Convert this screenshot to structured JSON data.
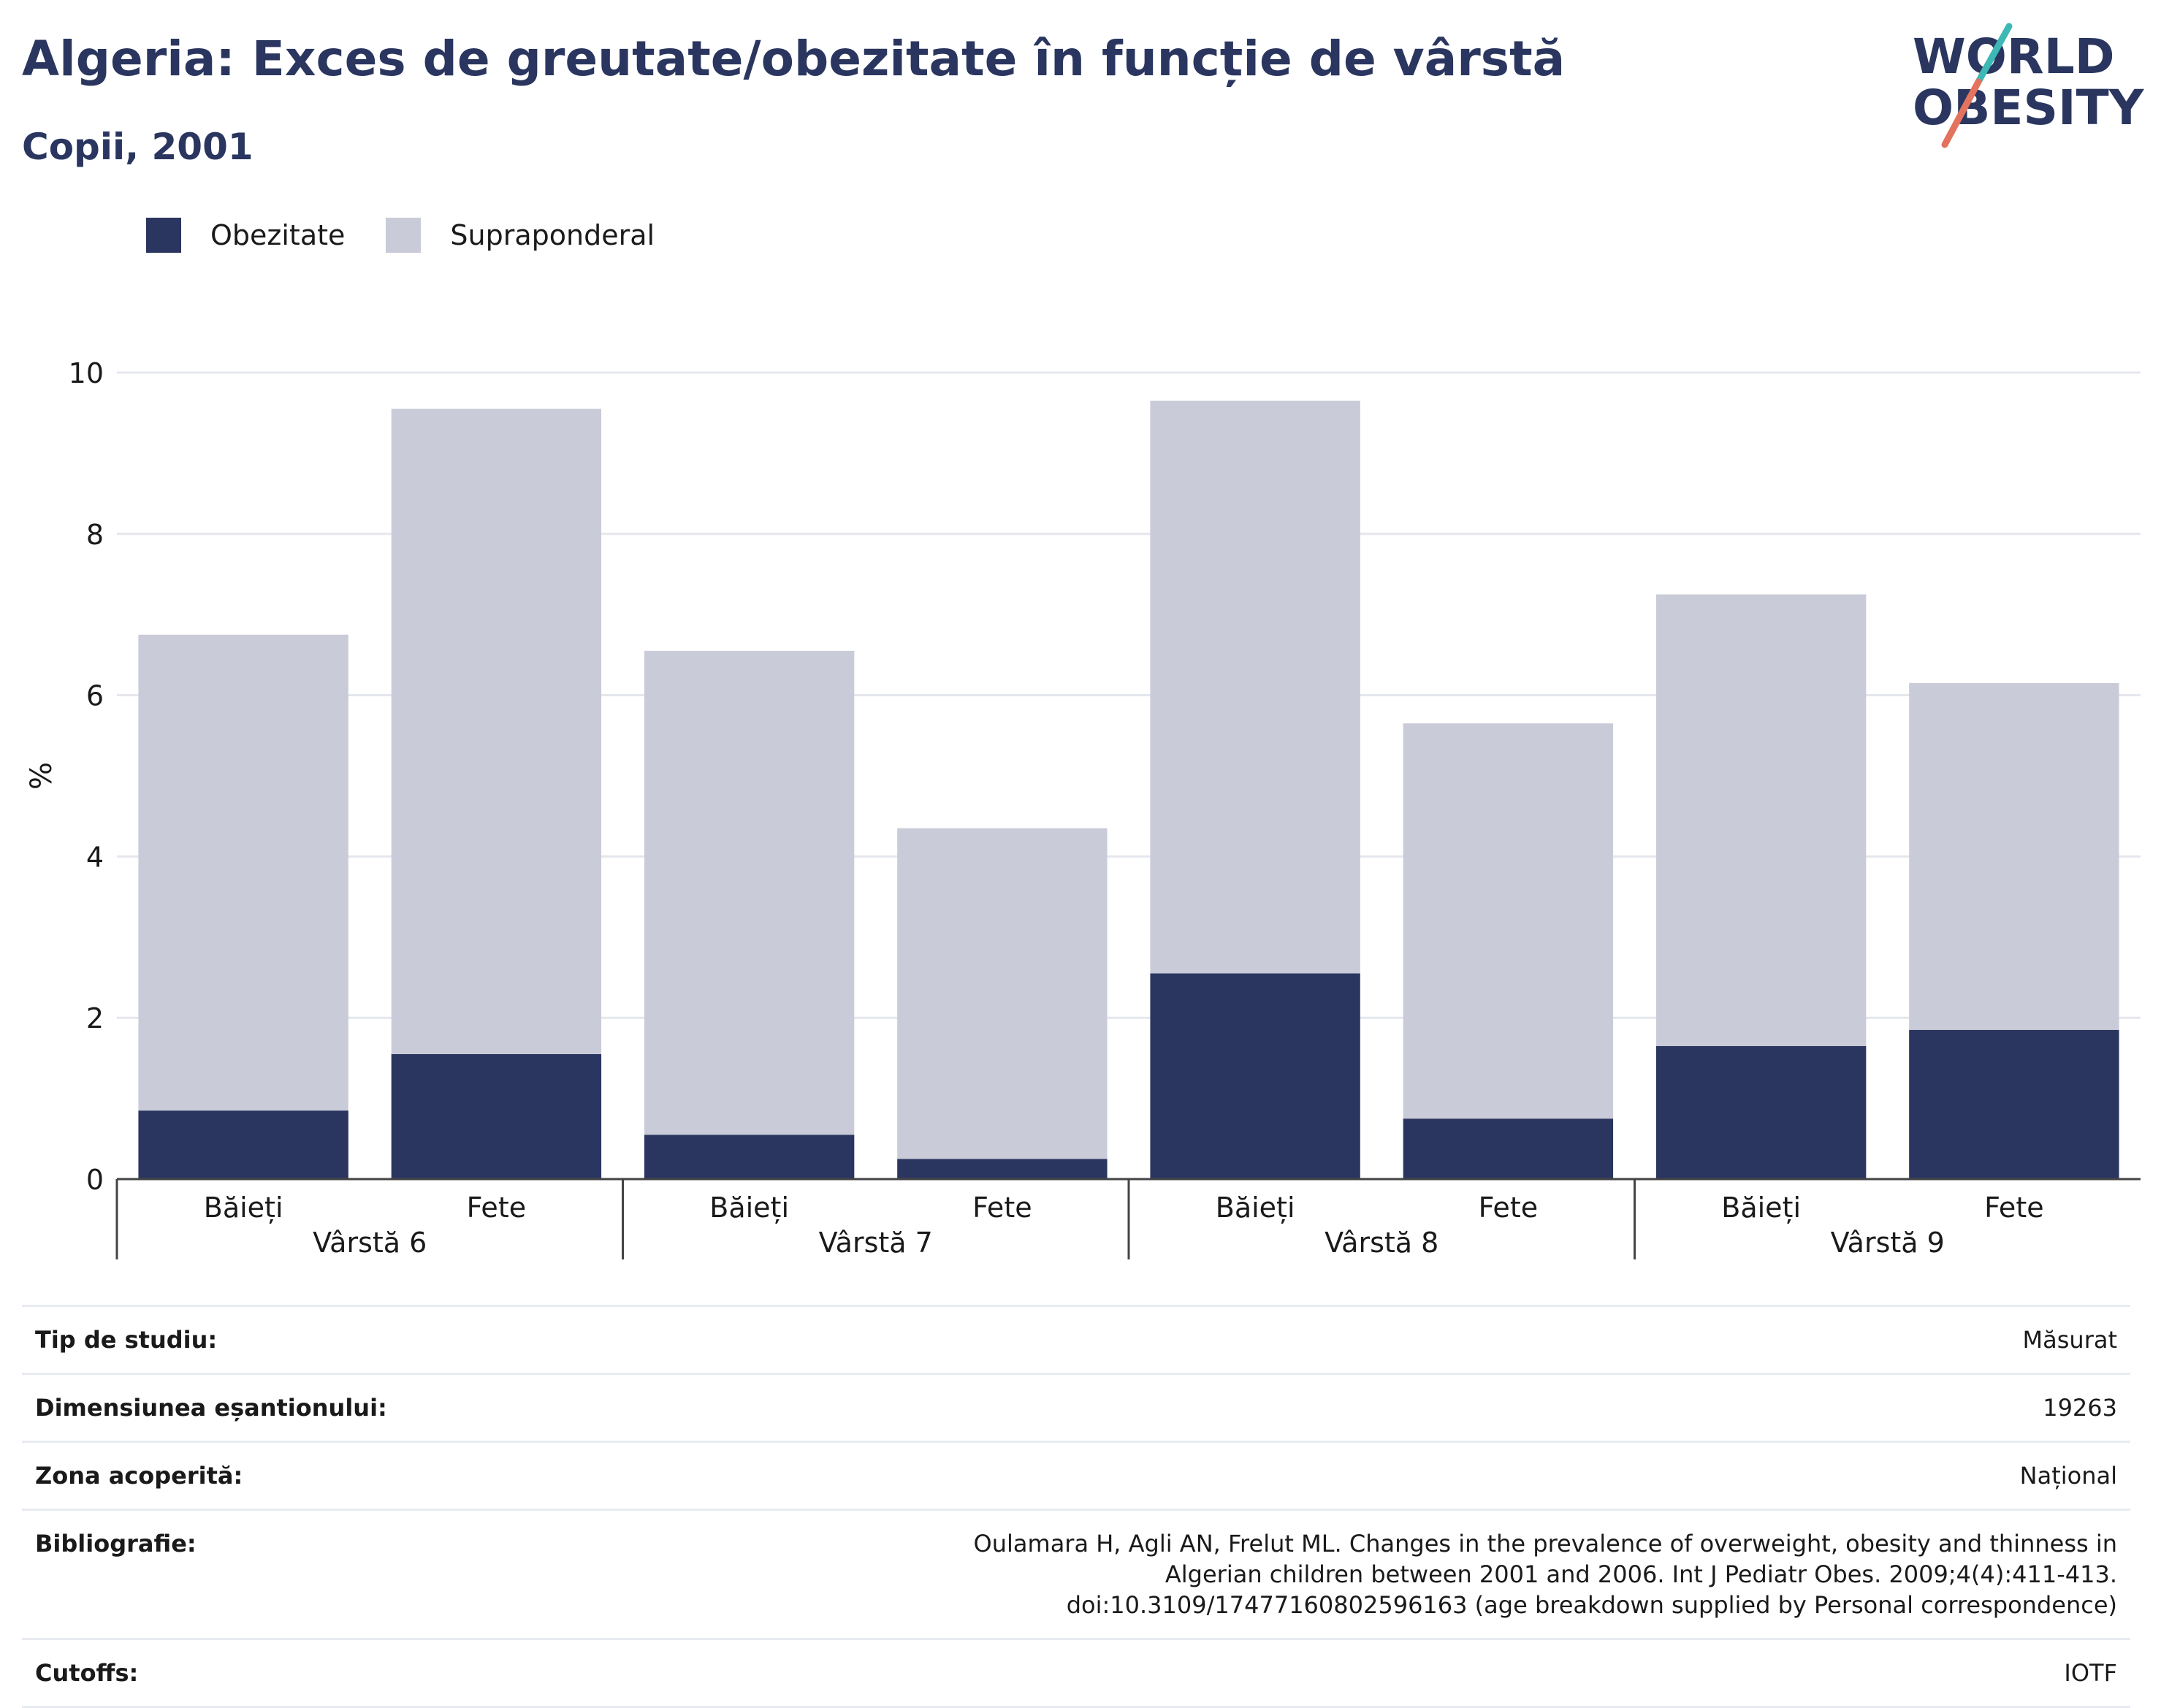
{
  "header": {
    "title": "Algeria: Exces de greutate/obezitate în funcție de vârstă",
    "subtitle": "Copii, 2001"
  },
  "logo": {
    "line1": "WORLD",
    "line2": "OBESITY"
  },
  "colors": {
    "obesity": "#2a365f",
    "overweight": "#cacbd8",
    "text": "#1a1a1a",
    "grid": "#e5e7ee",
    "logo_teal": "#3db8b4",
    "logo_coral": "#e3735e"
  },
  "chart_data": {
    "type": "bar",
    "stacked": true,
    "ylabel": "%",
    "ylim": [
      0,
      10
    ],
    "yticks": [
      0,
      2,
      4,
      6,
      8,
      10
    ],
    "grid": true,
    "legend_position": "top-left",
    "groups": [
      "Vârstă 6",
      "Vârstă 7",
      "Vârstă 8",
      "Vârstă 9"
    ],
    "categories": [
      "Băieți",
      "Fete",
      "Băieți",
      "Fete",
      "Băieți",
      "Fete",
      "Băieți",
      "Fete"
    ],
    "series": [
      {
        "name": "Obezitate",
        "values": [
          0.85,
          1.55,
          0.55,
          0.25,
          2.55,
          0.75,
          1.65,
          1.85
        ]
      },
      {
        "name": "Supraponderal",
        "values": [
          5.9,
          8.0,
          6.0,
          4.1,
          7.1,
          4.9,
          5.6,
          4.3
        ]
      }
    ]
  },
  "info": [
    {
      "label": "Tip de studiu:",
      "value": "Măsurat"
    },
    {
      "label": "Dimensiunea eșantionului:",
      "value": "19263"
    },
    {
      "label": "Zona acoperită:",
      "value": "Național"
    },
    {
      "label": "Bibliografie:",
      "value": "Oulamara H, Agli AN, Frelut ML. Changes in the prevalence of overweight, obesity and thinness in Algerian children between 2001 and 2006. Int J Pediatr Obes. 2009;4(4):411-413. doi:10.3109/17477160802596163 (age breakdown supplied by Personal correspondence)"
    },
    {
      "label": "Cutoffs:",
      "value": "IOTF"
    }
  ]
}
